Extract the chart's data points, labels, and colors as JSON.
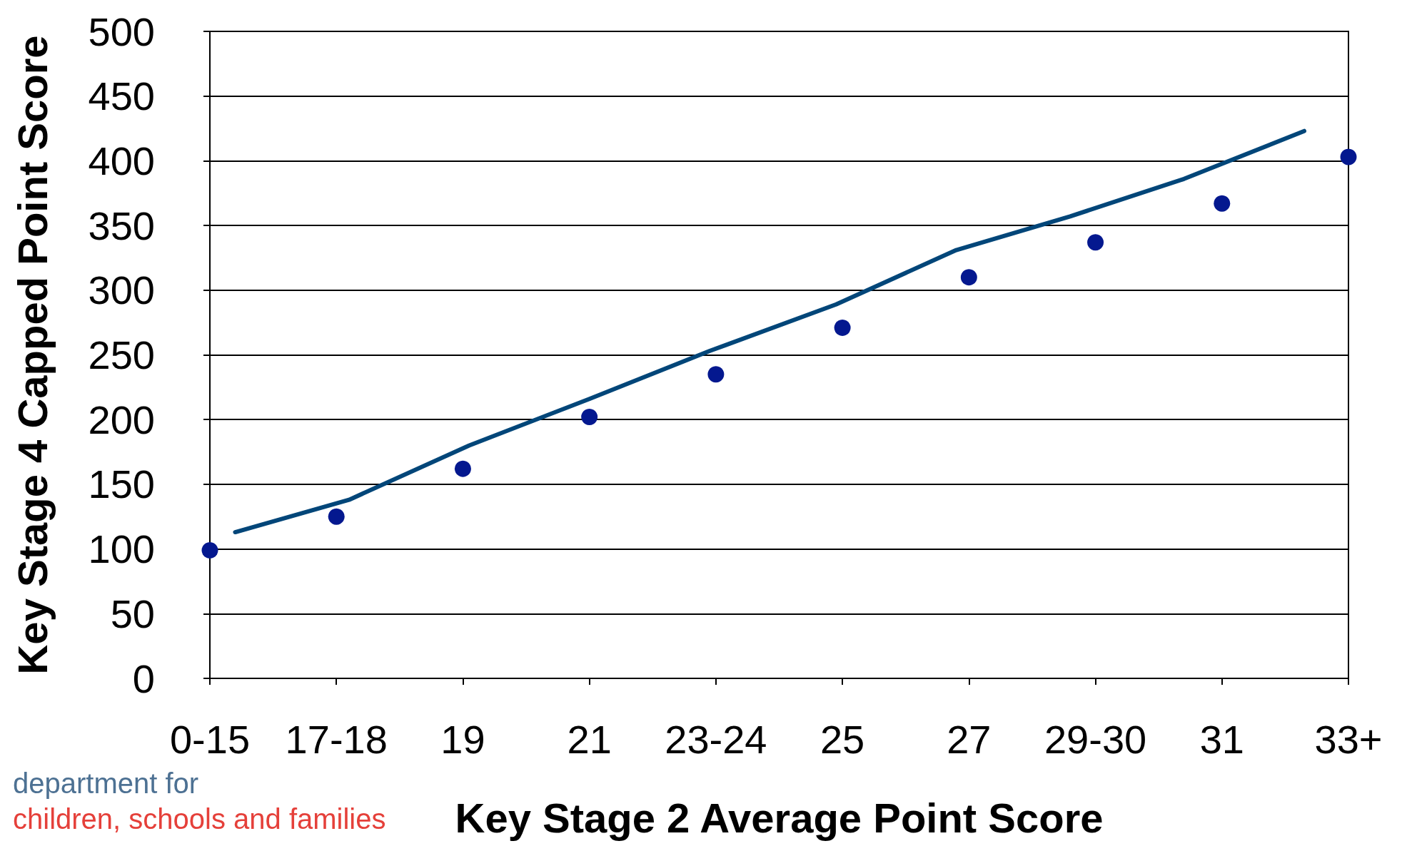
{
  "chart_data": {
    "type": "scatter",
    "xlabel": "Key Stage 2 Average Point Score",
    "ylabel": "Key Stage 4 Capped Point Score",
    "xlim": [
      15,
      33
    ],
    "xticks": [
      {
        "value": 15,
        "label": "0-15"
      },
      {
        "value": 17,
        "label": "17-18"
      },
      19,
      21,
      {
        "value": 23,
        "label": "23-24"
      },
      25,
      27,
      {
        "value": 29,
        "label": "29-30"
      },
      31,
      {
        "value": 33,
        "label": "33+"
      }
    ],
    "ylim": [
      0,
      500
    ],
    "yticks": [
      0,
      50,
      100,
      150,
      200,
      250,
      300,
      350,
      400,
      450,
      500
    ],
    "grid": "y",
    "series": [
      {
        "color": "#04188f",
        "marker": "circle",
        "x": [
          15,
          17,
          19,
          21,
          23,
          25,
          27,
          29,
          31,
          33
        ],
        "values": [
          99,
          125,
          162,
          202,
          235,
          271,
          310,
          337,
          367,
          403
        ]
      },
      {
        "type": "line",
        "color": "#024679",
        "marker": "none",
        "line_style": "solid",
        "x": [
          15.4,
          17.2,
          19.1,
          21.0,
          22.9,
          24.9,
          26.8,
          28.6,
          30.4,
          32.3
        ],
        "values": [
          113,
          138,
          180,
          216,
          253,
          289,
          331,
          357,
          386,
          423
        ]
      }
    ],
    "annotations": [
      "department for",
      "children, schools and families"
    ]
  }
}
